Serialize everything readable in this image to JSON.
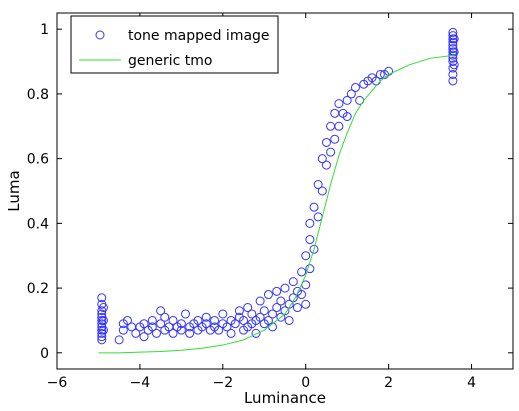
{
  "chart_data": {
    "type": "scatter",
    "xlabel": "Luminance",
    "ylabel": "Luma",
    "xlim": [
      -6,
      5
    ],
    "ylim": [
      -0.05,
      1.05
    ],
    "xticks": [
      -6,
      -4,
      -2,
      0,
      2,
      4
    ],
    "yticks": [
      0,
      0.2,
      0.4,
      0.6,
      0.8,
      1
    ],
    "xtick_labels": [
      "−6",
      "−4",
      "−2",
      "0",
      "2",
      "4"
    ],
    "ytick_labels": [
      "0",
      "0.2",
      "0.4",
      "0.6",
      "0.8",
      "1"
    ],
    "grid": false,
    "legend_position": "top-left",
    "series": [
      {
        "name": "tone mapped image",
        "kind": "scatter",
        "marker": "circle-open",
        "color": "#3333ff",
        "points": [
          [
            -4.92,
            0.17
          ],
          [
            -4.92,
            0.15
          ],
          [
            -4.92,
            0.13
          ],
          [
            -4.92,
            0.12
          ],
          [
            -4.92,
            0.11
          ],
          [
            -4.92,
            0.1
          ],
          [
            -4.92,
            0.09
          ],
          [
            -4.92,
            0.08
          ],
          [
            -4.92,
            0.07
          ],
          [
            -4.92,
            0.06
          ],
          [
            -4.92,
            0.05
          ],
          [
            -4.92,
            0.04
          ],
          [
            -4.88,
            0.14
          ],
          [
            -4.88,
            0.1
          ],
          [
            -4.88,
            0.07
          ],
          [
            -4.5,
            0.04
          ],
          [
            -4.4,
            0.07
          ],
          [
            -4.4,
            0.09
          ],
          [
            -4.3,
            0.1
          ],
          [
            -4.2,
            0.08
          ],
          [
            -4.1,
            0.06
          ],
          [
            -4.0,
            0.08
          ],
          [
            -3.9,
            0.09
          ],
          [
            -3.9,
            0.05
          ],
          [
            -3.8,
            0.07
          ],
          [
            -3.7,
            0.1
          ],
          [
            -3.7,
            0.08
          ],
          [
            -3.6,
            0.06
          ],
          [
            -3.5,
            0.09
          ],
          [
            -3.5,
            0.13
          ],
          [
            -3.4,
            0.07
          ],
          [
            -3.4,
            0.11
          ],
          [
            -3.3,
            0.08
          ],
          [
            -3.2,
            0.06
          ],
          [
            -3.2,
            0.1
          ],
          [
            -3.1,
            0.08
          ],
          [
            -3.0,
            0.09
          ],
          [
            -3.0,
            0.07
          ],
          [
            -2.9,
            0.12
          ],
          [
            -2.8,
            0.08
          ],
          [
            -2.8,
            0.06
          ],
          [
            -2.7,
            0.09
          ],
          [
            -2.6,
            0.07
          ],
          [
            -2.6,
            0.1
          ],
          [
            -2.5,
            0.08
          ],
          [
            -2.4,
            0.09
          ],
          [
            -2.4,
            0.11
          ],
          [
            -2.3,
            0.07
          ],
          [
            -2.2,
            0.08
          ],
          [
            -2.2,
            0.1
          ],
          [
            -2.1,
            0.07
          ],
          [
            -2.0,
            0.09
          ],
          [
            -2.0,
            0.12
          ],
          [
            -1.9,
            0.08
          ],
          [
            -1.8,
            0.06
          ],
          [
            -1.8,
            0.1
          ],
          [
            -1.7,
            0.09
          ],
          [
            -1.6,
            0.11
          ],
          [
            -1.6,
            0.13
          ],
          [
            -1.5,
            0.07
          ],
          [
            -1.5,
            0.1
          ],
          [
            -1.4,
            0.08
          ],
          [
            -1.4,
            0.14
          ],
          [
            -1.3,
            0.09
          ],
          [
            -1.3,
            0.12
          ],
          [
            -1.2,
            0.1
          ],
          [
            -1.2,
            0.06
          ],
          [
            -1.1,
            0.11
          ],
          [
            -1.1,
            0.16
          ],
          [
            -1.0,
            0.09
          ],
          [
            -1.0,
            0.13
          ],
          [
            -0.9,
            0.1
          ],
          [
            -0.9,
            0.18
          ],
          [
            -0.8,
            0.12
          ],
          [
            -0.8,
            0.08
          ],
          [
            -0.7,
            0.14
          ],
          [
            -0.7,
            0.19
          ],
          [
            -0.6,
            0.11
          ],
          [
            -0.6,
            0.16
          ],
          [
            -0.5,
            0.13
          ],
          [
            -0.5,
            0.2
          ],
          [
            -0.4,
            0.15
          ],
          [
            -0.4,
            0.1
          ],
          [
            -0.3,
            0.17
          ],
          [
            -0.3,
            0.22
          ],
          [
            -0.2,
            0.14
          ],
          [
            -0.2,
            0.19
          ],
          [
            -0.1,
            0.18
          ],
          [
            -0.1,
            0.25
          ],
          [
            0.0,
            0.21
          ],
          [
            0.0,
            0.3
          ],
          [
            0.0,
            0.15
          ],
          [
            0.1,
            0.26
          ],
          [
            0.1,
            0.35
          ],
          [
            0.1,
            0.4
          ],
          [
            0.2,
            0.32
          ],
          [
            0.2,
            0.45
          ],
          [
            0.3,
            0.42
          ],
          [
            0.3,
            0.52
          ],
          [
            0.4,
            0.5
          ],
          [
            0.4,
            0.6
          ],
          [
            0.5,
            0.58
          ],
          [
            0.5,
            0.65
          ],
          [
            0.6,
            0.62
          ],
          [
            0.6,
            0.7
          ],
          [
            0.7,
            0.66
          ],
          [
            0.7,
            0.74
          ],
          [
            0.8,
            0.7
          ],
          [
            0.8,
            0.77
          ],
          [
            0.9,
            0.74
          ],
          [
            1.0,
            0.78
          ],
          [
            1.0,
            0.73
          ],
          [
            1.1,
            0.8
          ],
          [
            1.2,
            0.82
          ],
          [
            1.3,
            0.78
          ],
          [
            1.4,
            0.83
          ],
          [
            1.5,
            0.84
          ],
          [
            1.6,
            0.85
          ],
          [
            1.7,
            0.84
          ],
          [
            1.8,
            0.86
          ],
          [
            1.9,
            0.86
          ],
          [
            2.0,
            0.87
          ],
          [
            3.55,
            0.99
          ],
          [
            3.55,
            0.98
          ],
          [
            3.55,
            0.97
          ],
          [
            3.55,
            0.96
          ],
          [
            3.55,
            0.95
          ],
          [
            3.55,
            0.94
          ],
          [
            3.55,
            0.93
          ],
          [
            3.55,
            0.92
          ],
          [
            3.55,
            0.91
          ],
          [
            3.55,
            0.9
          ],
          [
            3.55,
            0.88
          ],
          [
            3.55,
            0.86
          ],
          [
            3.55,
            0.84
          ],
          [
            3.58,
            0.97
          ],
          [
            3.58,
            0.93
          ],
          [
            3.58,
            0.89
          ]
        ]
      },
      {
        "name": "generic tmo",
        "kind": "line",
        "color": "#33dd33",
        "x": [
          -5.0,
          -4.5,
          -4.0,
          -3.5,
          -3.0,
          -2.5,
          -2.0,
          -1.5,
          -1.0,
          -0.5,
          -0.25,
          0.0,
          0.2,
          0.4,
          0.6,
          0.8,
          1.0,
          1.2,
          1.4,
          1.6,
          1.8,
          2.0,
          2.5,
          3.0,
          3.6
        ],
        "y": [
          0.0,
          0.0,
          0.002,
          0.004,
          0.008,
          0.014,
          0.024,
          0.04,
          0.07,
          0.12,
          0.17,
          0.24,
          0.32,
          0.42,
          0.52,
          0.61,
          0.68,
          0.74,
          0.78,
          0.81,
          0.84,
          0.86,
          0.89,
          0.91,
          0.92
        ]
      }
    ]
  }
}
